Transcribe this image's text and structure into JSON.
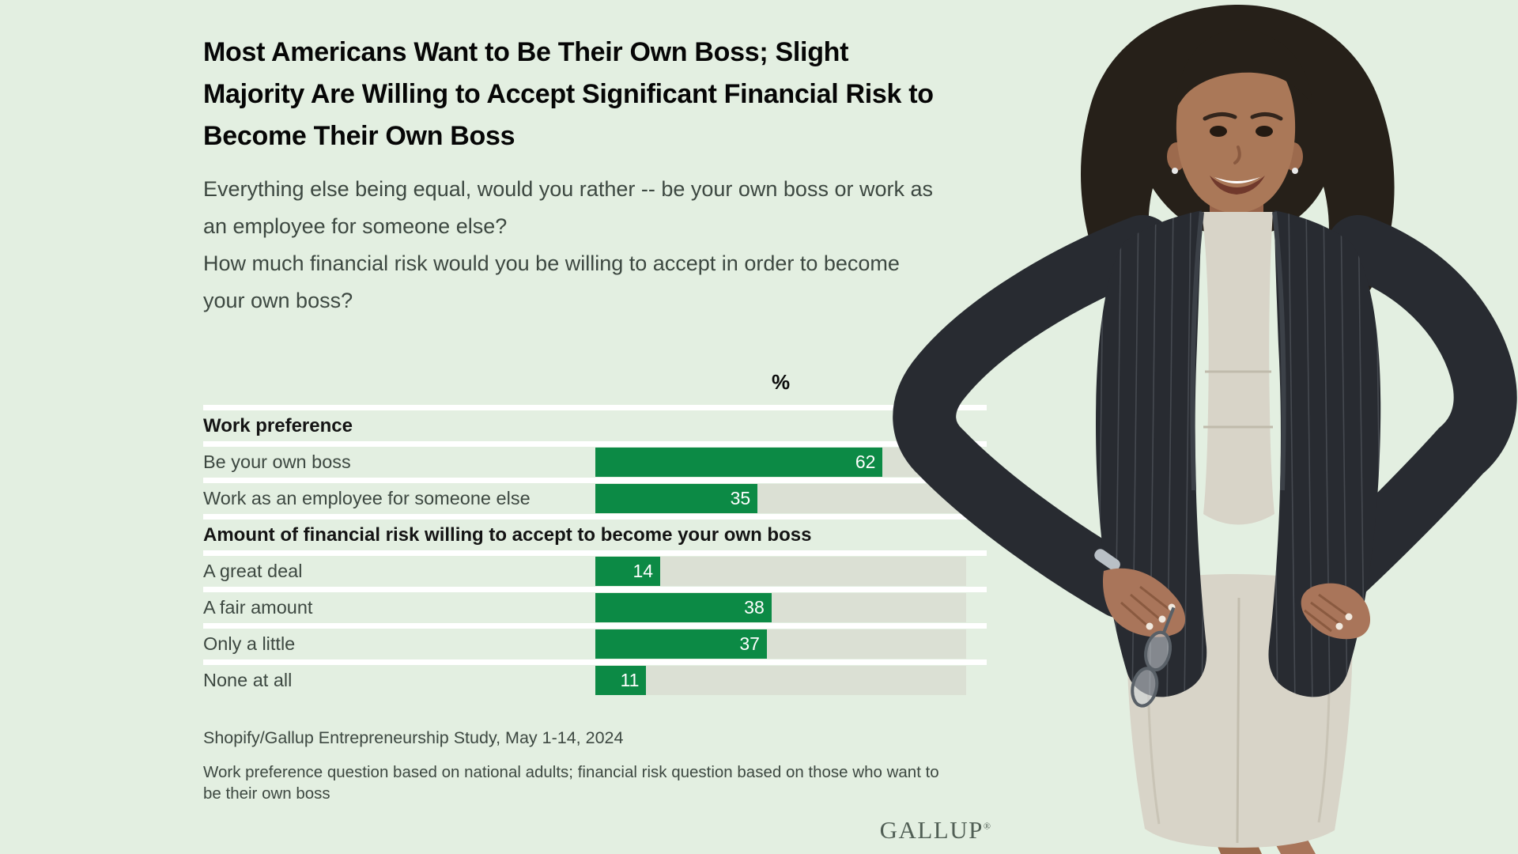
{
  "page": {
    "background": "#e3efe1"
  },
  "header": {
    "title_lines": [
      "Most Americans Want to Be Their Own Boss; Slight",
      "Majority Are Willing to Accept Significant Financial Risk to",
      "Become Their Own Boss"
    ],
    "subtitle_lines": [
      "Everything else being equal, would you rather -- be your own boss or work as",
      "an employee for someone else?",
      "How much financial risk would you be willing to accept in order to become",
      "your own boss?"
    ]
  },
  "chart_data": {
    "type": "bar",
    "orientation": "horizontal",
    "axis_header": "%",
    "xlim": [
      0,
      80
    ],
    "grid": false,
    "value_labels": "inside-right",
    "colors": {
      "bar": "#0c8a45",
      "track": "#dbe0d4",
      "separator": "#ffffff",
      "value_text": "#ffffff"
    },
    "groups": [
      {
        "header": "Work preference",
        "items": [
          {
            "label": "Be your own boss",
            "value": 62
          },
          {
            "label": "Work as an employee for someone else",
            "value": 35
          }
        ]
      },
      {
        "header": "Amount of financial risk willing to accept to become your own boss",
        "items": [
          {
            "label": "A great deal",
            "value": 14
          },
          {
            "label": "A fair amount",
            "value": 38
          },
          {
            "label": "Only a little",
            "value": 37
          },
          {
            "label": "None at all",
            "value": 11
          }
        ]
      }
    ]
  },
  "footer": {
    "source": "Shopify/Gallup Entrepreneurship Study, May 1-14, 2024",
    "note_lines": [
      "Work preference question based on national adults; financial risk question based on those who want to",
      "be their own boss"
    ],
    "logo_text": "GALLUP",
    "logo_mark": "®"
  },
  "photo": {
    "alt": "Smiling businesswoman with dark curly hair, dark pinstripe blazer and beige dress, hands on hips holding eyeglasses"
  }
}
